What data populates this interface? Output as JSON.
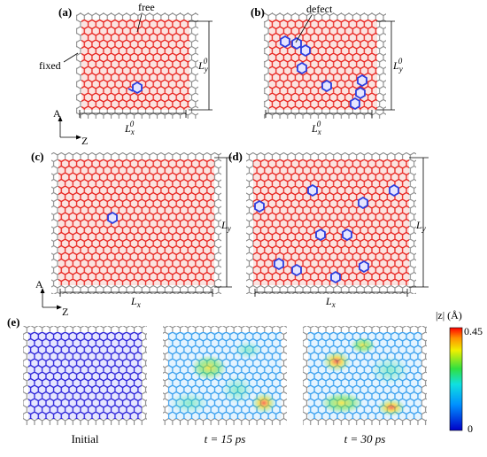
{
  "figure": {
    "panels": {
      "a": {
        "label": "(a)",
        "free_label": "free",
        "fixed_label": "fixed",
        "lx": "L",
        "lx_sub": "x",
        "lx_sup": "0",
        "ly": "L",
        "ly_sub": "y",
        "ly_sup": "0",
        "axis_a": "A",
        "axis_z": "Z"
      },
      "b": {
        "label": "(b)",
        "defect_label": "defect",
        "lx": "L",
        "lx_sub": "x",
        "lx_sup": "0",
        "ly": "L",
        "ly_sub": "y",
        "ly_sup": "0"
      },
      "c": {
        "label": "(c)",
        "lx": "L",
        "lx_sub": "x",
        "ly": "L",
        "ly_sub": "y",
        "axis_a": "A",
        "axis_z": "Z"
      },
      "d": {
        "label": "(d)",
        "lx": "L",
        "lx_sub": "x",
        "ly": "L",
        "ly_sub": "y"
      },
      "e": {
        "label": "(e)",
        "captions": [
          "Initial",
          "t = 15 ps",
          "t = 30 ps"
        ],
        "colorbar_title": "|z| (Å)",
        "colorbar_max": "0.45",
        "colorbar_min": "0"
      }
    },
    "colors": {
      "free_atoms": "#e8231e",
      "fixed_atoms": "#9a9a9a",
      "defect_atoms": "#2a3ee0",
      "initial_atoms": "#2a22d8"
    }
  }
}
